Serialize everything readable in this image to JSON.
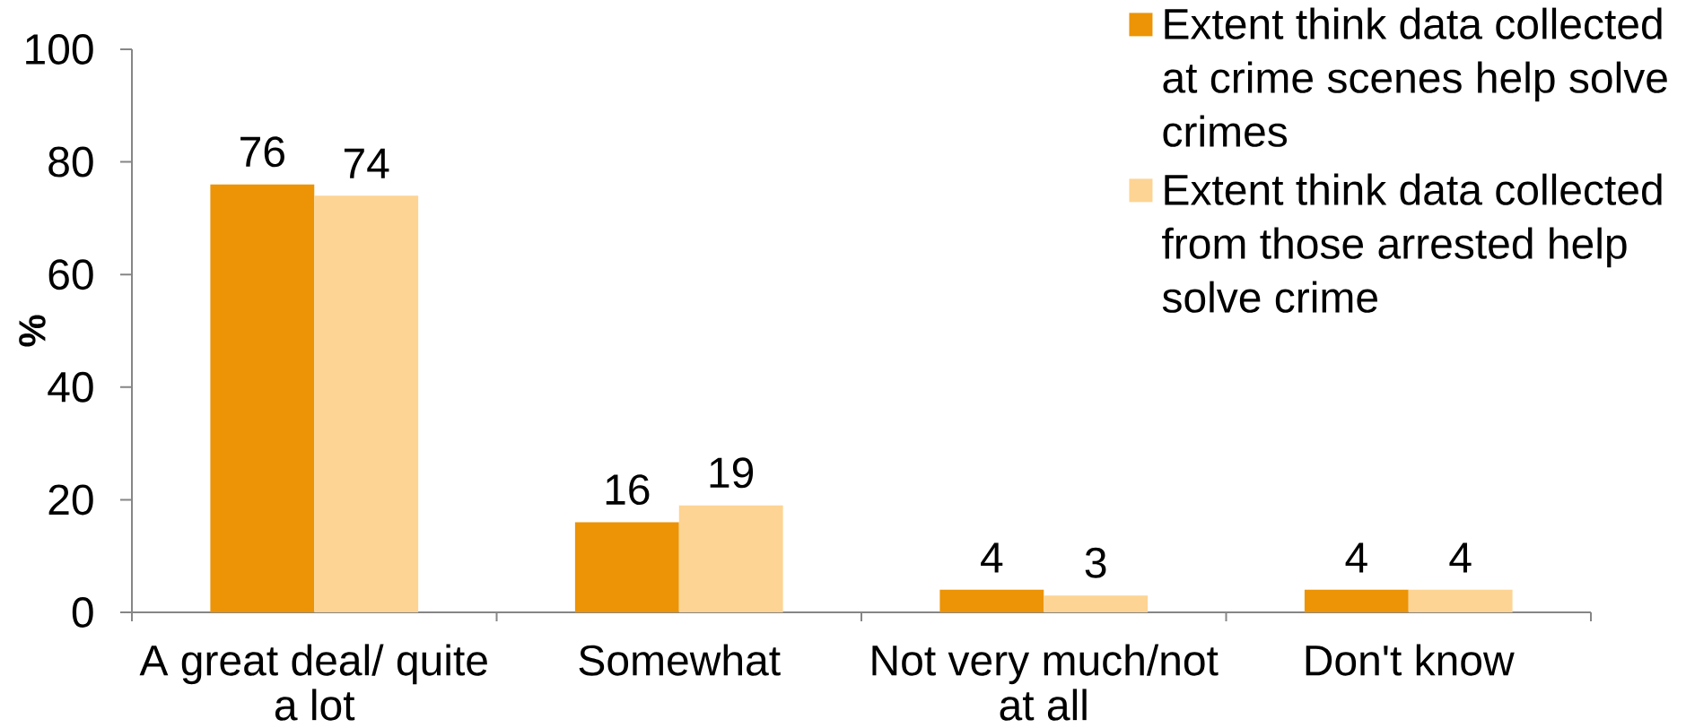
{
  "chart_data": {
    "type": "bar",
    "ylabel": "%",
    "categories": [
      "A great deal/ quite a lot",
      "Somewhat",
      "Not very much/not at all",
      "Don't know"
    ],
    "series": [
      {
        "name": "Extent think data collected at crime scenes help solve crimes",
        "color": "#ec9406",
        "values": [
          76,
          16,
          4,
          4
        ]
      },
      {
        "name": "Extent think data collected from those arrested help solve crime",
        "color": "#fdd493",
        "values": [
          74,
          19,
          3,
          4
        ]
      }
    ],
    "ylim": [
      0,
      100
    ],
    "yticks": [
      0,
      20,
      40,
      60,
      80,
      100
    ],
    "data_labels": true,
    "legend": "top right"
  }
}
